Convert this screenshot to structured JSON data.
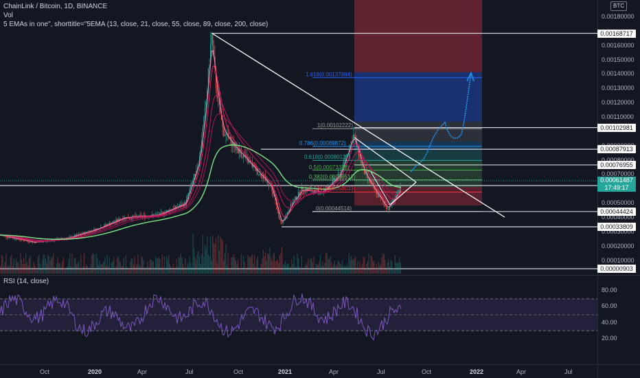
{
  "header": {
    "title": "ChainLink / Bitcoin, 1D, BINANCE",
    "indicator_vol": "Vol",
    "indicator_ema": "5 EMAs in one\", shorttitle=\"5EMA (13, close, 21, close, 55, close, 89, close, 200, close)"
  },
  "rsi": {
    "title": "RSI (14, close)"
  },
  "currency": "BTC",
  "price_scale": {
    "ticks": [
      "0.00180000",
      "0.00160000",
      "0.00150000",
      "0.00140000",
      "0.00130000",
      "0.00120000",
      "0.00110000",
      "0.00090000",
      "0.00080000",
      "0.00070000",
      "0.00060000",
      "0.00050000",
      "0.00040000",
      "0.00030000",
      "0.00020000",
      "0.00010000"
    ],
    "tick_values": [
      0.0018,
      0.0016,
      0.0015,
      0.0014,
      0.0013,
      0.0012,
      0.0011,
      0.0009,
      0.0008,
      0.0007,
      0.0006,
      0.0005,
      0.0004,
      0.0003,
      0.0002,
      0.0001
    ]
  },
  "horizontal_lines": [
    {
      "label": "0.00168717",
      "value": 0.00168717
    },
    {
      "label": "0.00102981",
      "value": 0.00102981
    },
    {
      "label": "0.00087913",
      "value": 0.00087913
    },
    {
      "label": "0.00076955",
      "value": 0.00076955
    },
    {
      "label": "0.00062573",
      "value": 0.00062573
    },
    {
      "label": "0.00044424",
      "value": 0.00044424
    },
    {
      "label": "0.00033809",
      "value": 0.00033809
    },
    {
      "label": "0.00000903",
      "value": 9.03e-06
    }
  ],
  "current_price": {
    "value": "0.00061487",
    "countdown": "17:49:17"
  },
  "fib_levels": [
    {
      "label": "1.618(0.00137884)",
      "value": 0.00137884,
      "color": "#2962ff"
    },
    {
      "label": "1(0.00102222)",
      "value": 0.00102222,
      "color": "#9e9e9e"
    },
    {
      "label": "0.786(0.00089872)",
      "value": 0.00089872,
      "color": "#2196f3"
    },
    {
      "label": "0.618(0.00080137)",
      "value": 0.00080137,
      "color": "#26a69a"
    },
    {
      "label": "0.5(0.00073338)",
      "value": 0.00073338,
      "color": "#4caf50"
    },
    {
      "label": "0.382(0.00066513)",
      "value": 0.00066513,
      "color": "#66bb6a"
    },
    {
      "label": "0.236(0.00058033)",
      "value": 0.00058033,
      "color": "#f23645"
    },
    {
      "label": "0(0.00044514)",
      "value": 0.00044514,
      "color": "#9e9e9e"
    }
  ],
  "rsi_scale": {
    "ticks": [
      "80.00",
      "60.00",
      "40.00",
      "20.00"
    ],
    "values": [
      80,
      60,
      40,
      20
    ]
  },
  "time_axis": [
    {
      "label": "Oct",
      "bold": false
    },
    {
      "label": "2020",
      "bold": true
    },
    {
      "label": "Apr",
      "bold": false
    },
    {
      "label": "Jul",
      "bold": false
    },
    {
      "label": "Oct",
      "bold": false
    },
    {
      "label": "2021",
      "bold": true
    },
    {
      "label": "Apr",
      "bold": false
    },
    {
      "label": "Jul",
      "bold": false
    },
    {
      "label": "Oct",
      "bold": false
    },
    {
      "label": "2022",
      "bold": true
    },
    {
      "label": "Apr",
      "bold": false
    },
    {
      "label": "Jul",
      "bold": false
    }
  ],
  "colors": {
    "background": "#131722",
    "up": "#26a69a",
    "down": "#ef5350",
    "ema_green": "#7ee787",
    "ema_pink": "#e91e63",
    "rsi_line": "#7e57c2",
    "projection": "#2196f3"
  }
}
